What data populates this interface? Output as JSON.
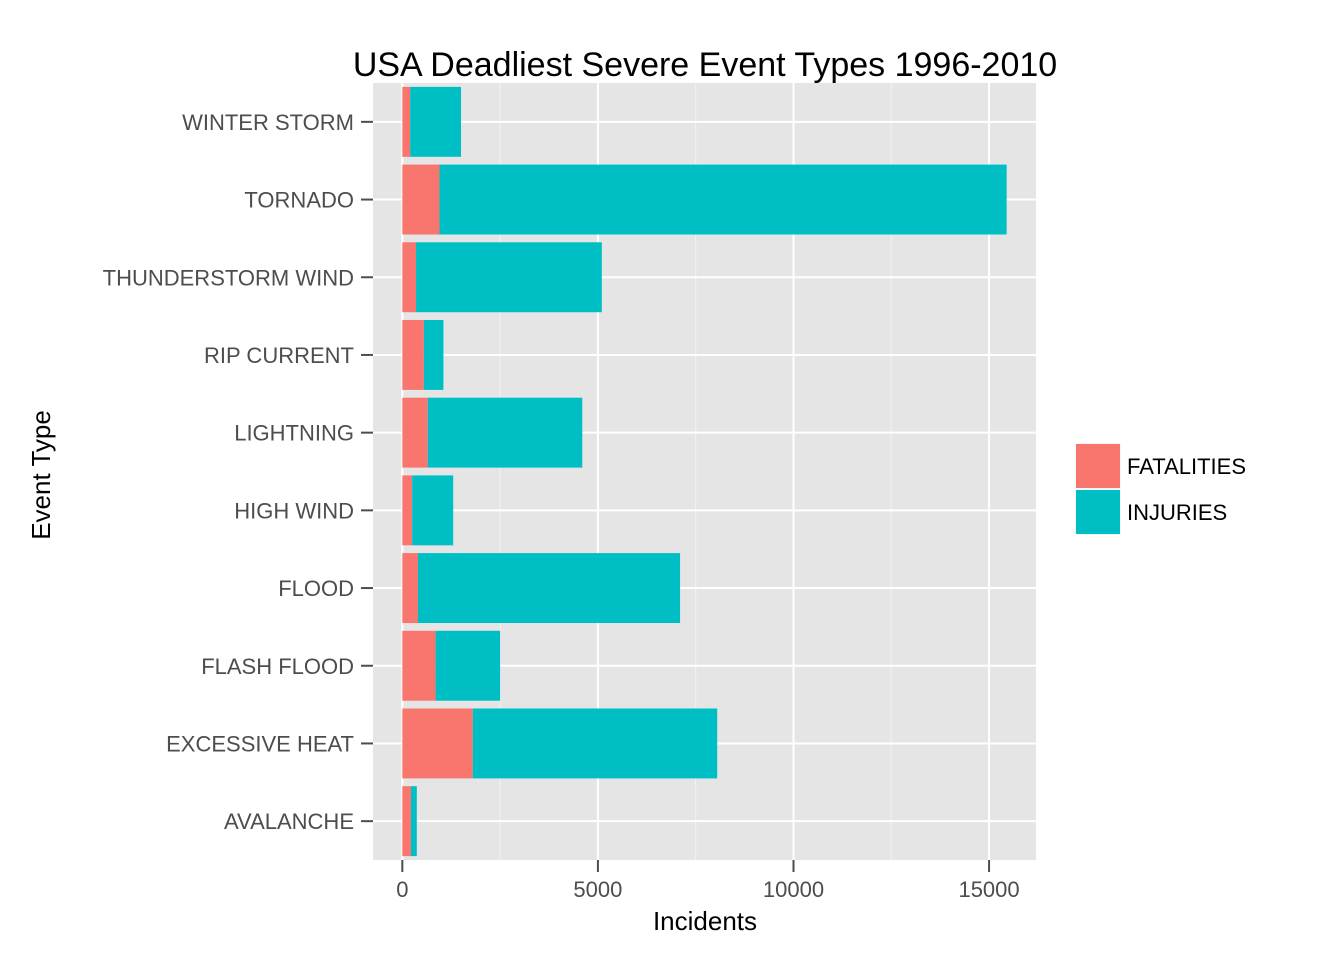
{
  "chart_data": {
    "type": "bar",
    "orientation": "horizontal",
    "stacked": true,
    "title": "USA Deadliest Severe Event Types 1996-2010",
    "xlabel": "Incidents",
    "ylabel": "Event Type",
    "xlim": [
      -750,
      16200
    ],
    "xticks": [
      0,
      5000,
      10000,
      15000
    ],
    "xtick_labels": [
      "0",
      "5000",
      "10000",
      "15000"
    ],
    "categories": [
      "AVALANCHE",
      "EXCESSIVE HEAT",
      "FLASH FLOOD",
      "FLOOD",
      "HIGH WIND",
      "LIGHTNING",
      "RIP CURRENT",
      "THUNDERSTORM WIND",
      "TORNADO",
      "WINTER STORM"
    ],
    "series": [
      {
        "name": "FATALITIES",
        "color": "#F8766D",
        "values": [
          220,
          1800,
          850,
          400,
          250,
          650,
          550,
          350,
          950,
          200
        ]
      },
      {
        "name": "INJURIES",
        "color": "#00BFC4",
        "values": [
          150,
          6250,
          1650,
          6700,
          1050,
          3950,
          500,
          4750,
          14500,
          1300
        ]
      }
    ],
    "grid": true,
    "legend_position": "right"
  }
}
